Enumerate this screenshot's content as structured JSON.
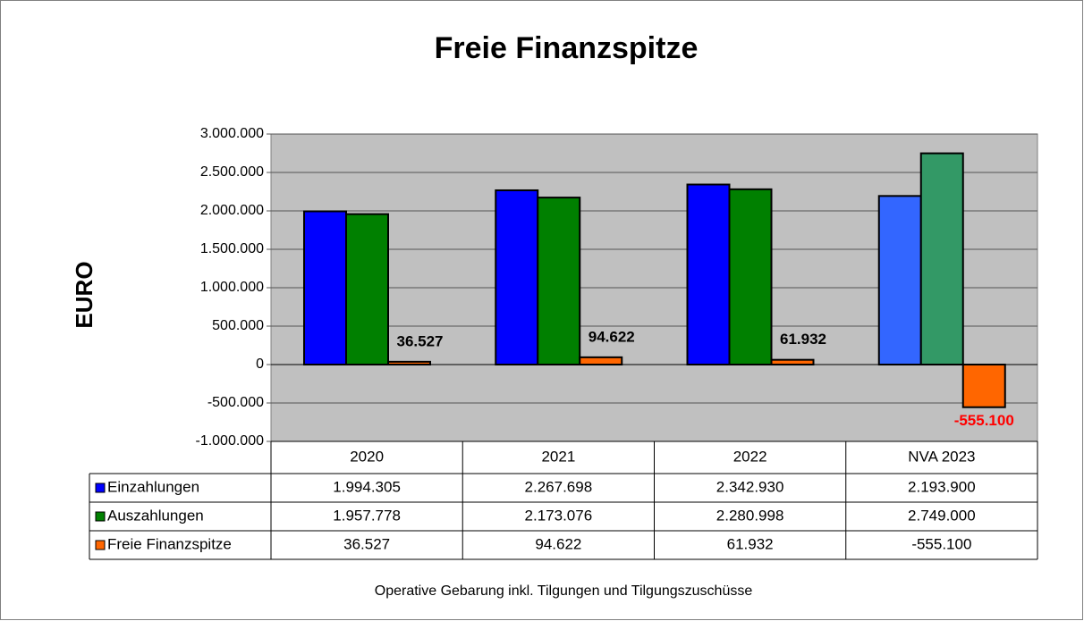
{
  "chart_data": {
    "type": "bar",
    "title": "Freie Finanzspitze",
    "y_label": "EURO",
    "footnote": "Operative Gebarung inkl. Tilgungen und Tilgungszuschüsse",
    "categories": [
      "2020",
      "2021",
      "2022",
      "NVA 2023"
    ],
    "series": [
      {
        "name": "Einzahlungen",
        "color": "#0000ff",
        "colors": [
          "#0000ff",
          "#0000ff",
          "#0000ff",
          "#3366ff"
        ],
        "values": [
          1994305,
          2267698,
          2342930,
          2193900
        ],
        "value_labels": [
          "1.994.305",
          "2.267.698",
          "2.342.930",
          "2.193.900"
        ]
      },
      {
        "name": "Auszahlungen",
        "color": "#008000",
        "colors": [
          "#008000",
          "#008000",
          "#008000",
          "#339966"
        ],
        "values": [
          1957778,
          2173076,
          2280998,
          2749000
        ],
        "value_labels": [
          "1.957.778",
          "2.173.076",
          "2.280.998",
          "2.749.000"
        ]
      },
      {
        "name": "Freie Finanzspitze",
        "color": "#ff6600",
        "colors": [
          "#ff6600",
          "#ff6600",
          "#ff6600",
          "#ff6600"
        ],
        "values": [
          36527,
          94622,
          61932,
          -555100
        ],
        "value_labels": [
          "36.527",
          "94.622",
          "61.932",
          "-555.100"
        ],
        "data_labels": true,
        "negative_label_color": "#ff0000"
      }
    ],
    "ylim": [
      -1000000,
      3000000
    ],
    "yticks": [
      {
        "value": -1000000,
        "label": "-1.000.000"
      },
      {
        "value": -500000,
        "label": "-500.000"
      },
      0,
      {
        "value": 500000,
        "label": "500.000"
      },
      {
        "value": 1000000,
        "label": "1.000.000"
      },
      {
        "value": 1500000,
        "label": "1.500.000"
      },
      {
        "value": 2000000,
        "label": "2.000.000"
      },
      {
        "value": 2500000,
        "label": "2.500.000"
      },
      {
        "value": 3000000,
        "label": "3.000.000"
      }
    ],
    "grid": true,
    "plot_background": "#c0c0c0"
  }
}
